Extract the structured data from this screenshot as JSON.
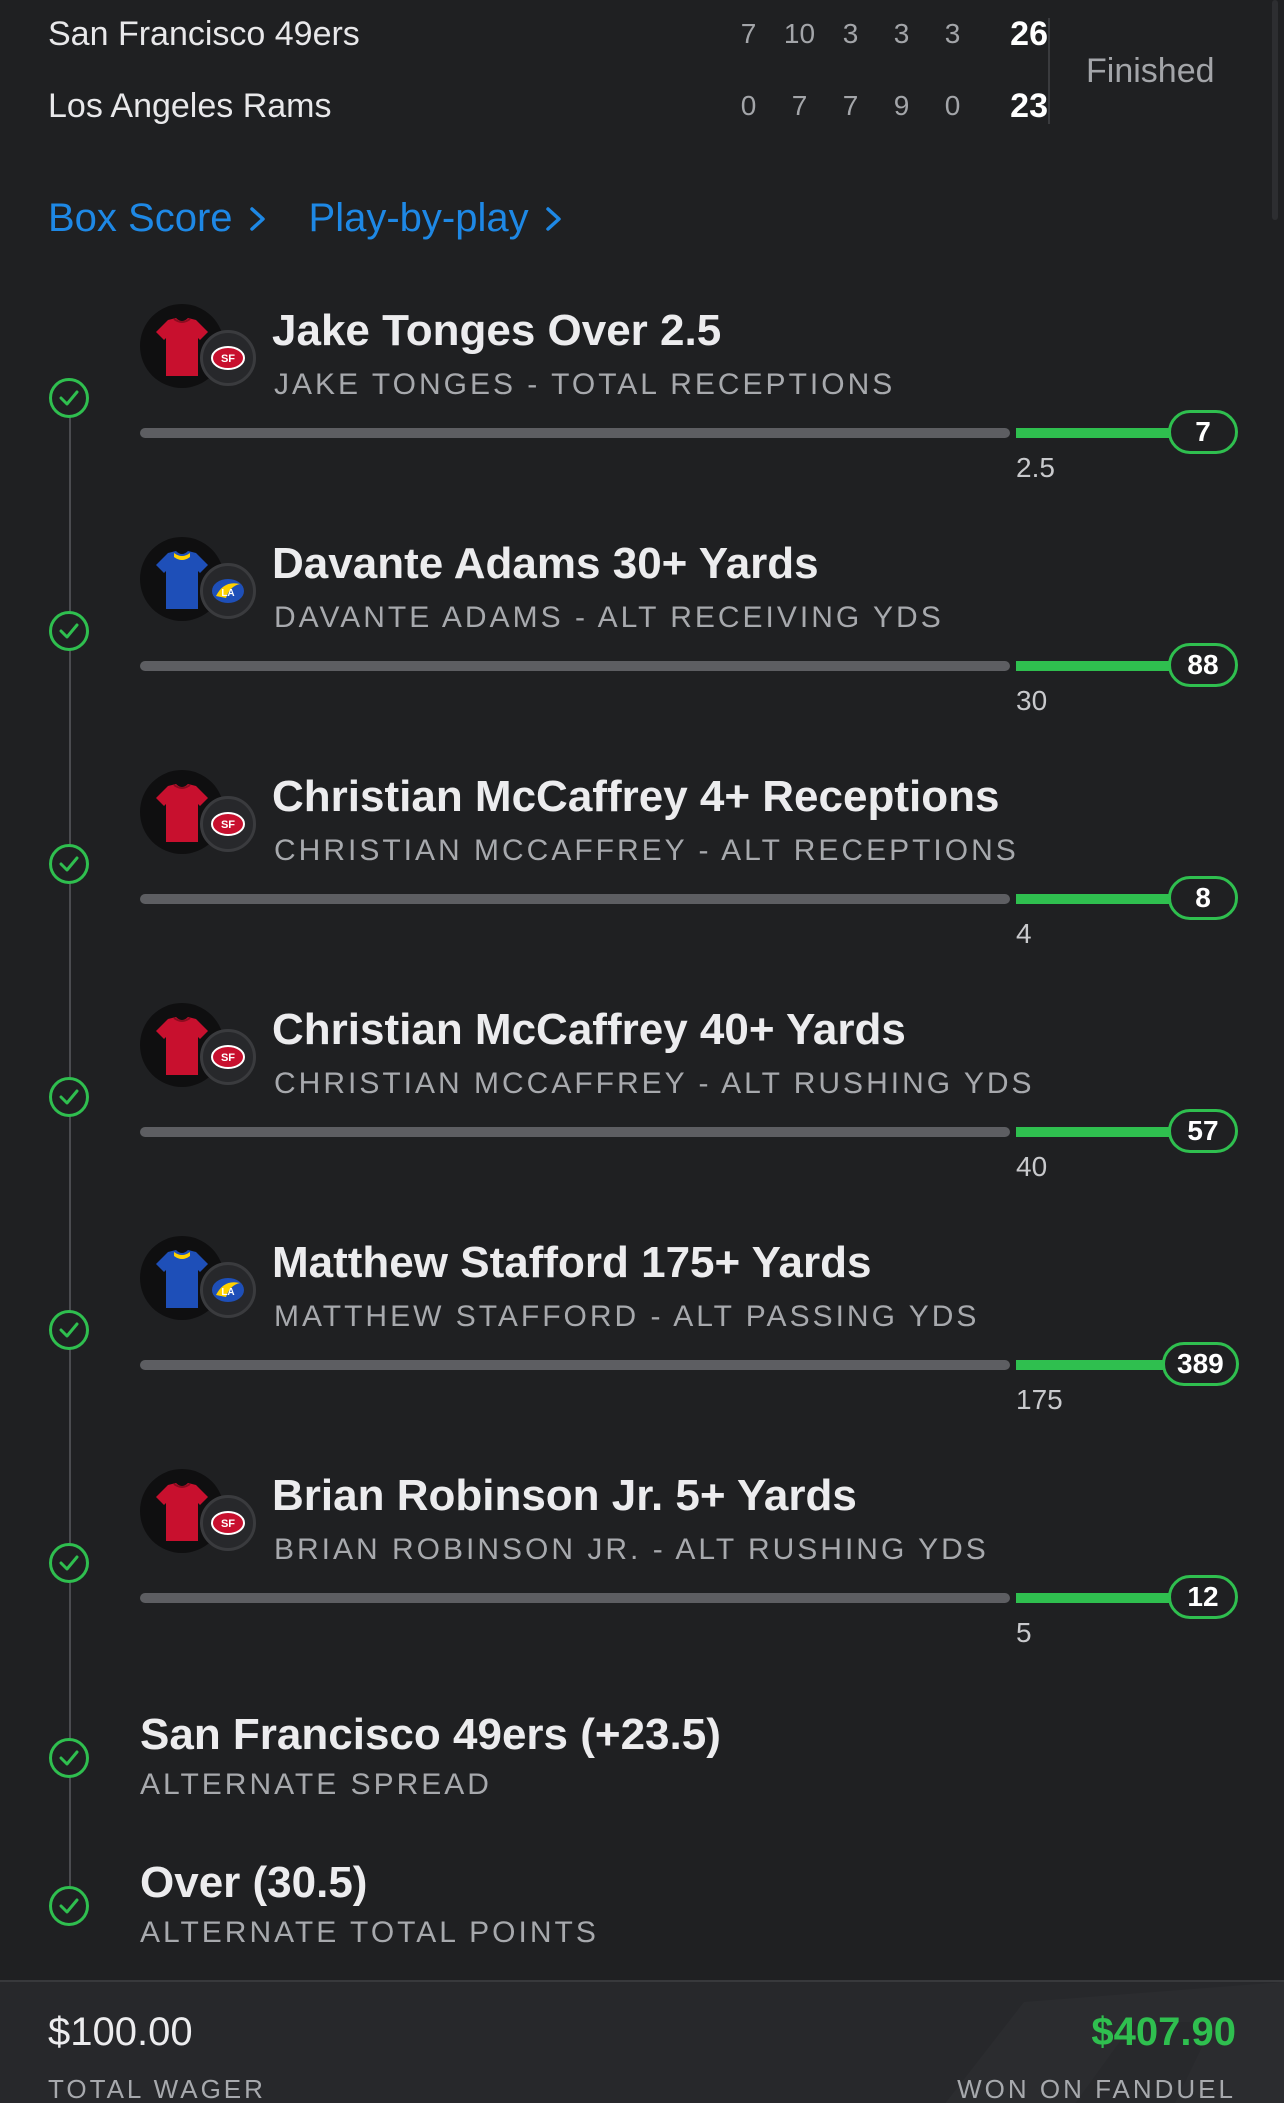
{
  "scoreboard": {
    "teams": [
      {
        "name": "San Francisco 49ers",
        "quarters": [
          "7",
          "10",
          "3",
          "3",
          "3"
        ],
        "total": "26"
      },
      {
        "name": "Los Angeles Rams",
        "quarters": [
          "0",
          "7",
          "7",
          "9",
          "0"
        ],
        "total": "23"
      }
    ],
    "status": "Finished"
  },
  "links": {
    "box_score": "Box Score",
    "play_by_play": "Play-by-play"
  },
  "legs": [
    {
      "title": "Jake Tonges Over 2.5",
      "subtitle": "JAKE TONGES - TOTAL RECEPTIONS",
      "threshold": "2.5",
      "result": "7",
      "team": "49ers",
      "jersey_color": "#c8102e"
    },
    {
      "title": "Davante Adams 30+ Yards",
      "subtitle": "DAVANTE ADAMS - ALT RECEIVING YDS",
      "threshold": "30",
      "result": "88",
      "team": "Rams",
      "jersey_color": "#1e4fb8"
    },
    {
      "title": "Christian McCaffrey 4+ Receptions",
      "subtitle": "CHRISTIAN MCCAFFREY - ALT RECEPTIONS",
      "threshold": "4",
      "result": "8",
      "team": "49ers",
      "jersey_color": "#c8102e"
    },
    {
      "title": "Christian McCaffrey 40+ Yards",
      "subtitle": "CHRISTIAN MCCAFFREY - ALT RUSHING YDS",
      "threshold": "40",
      "result": "57",
      "team": "49ers",
      "jersey_color": "#c8102e"
    },
    {
      "title": "Matthew Stafford 175+ Yards",
      "subtitle": "MATTHEW STAFFORD - ALT PASSING YDS",
      "threshold": "175",
      "result": "389",
      "team": "Rams",
      "jersey_color": "#1e4fb8"
    },
    {
      "title": "Brian Robinson Jr. 5+ Yards",
      "subtitle": "BRIAN ROBINSON JR. - ALT RUSHING YDS",
      "threshold": "5",
      "result": "12",
      "team": "49ers",
      "jersey_color": "#c8102e"
    }
  ],
  "simple_legs": [
    {
      "title": "San Francisco 49ers (+23.5)",
      "subtitle": "ALTERNATE SPREAD"
    },
    {
      "title": "Over (30.5)",
      "subtitle": "ALTERNATE TOTAL POINTS"
    }
  ],
  "footer": {
    "wager": "$100.00",
    "wager_label": "TOTAL WAGER",
    "won": "$407.90",
    "won_label": "WON ON FANDUEL"
  },
  "colors": {
    "accent_link": "#1e88e5",
    "success": "#2fbf4f",
    "background": "#1f2022"
  },
  "icons": [
    "chevron-right-icon",
    "check-circle-icon",
    "jersey-icon",
    "team-logo-icon"
  ]
}
